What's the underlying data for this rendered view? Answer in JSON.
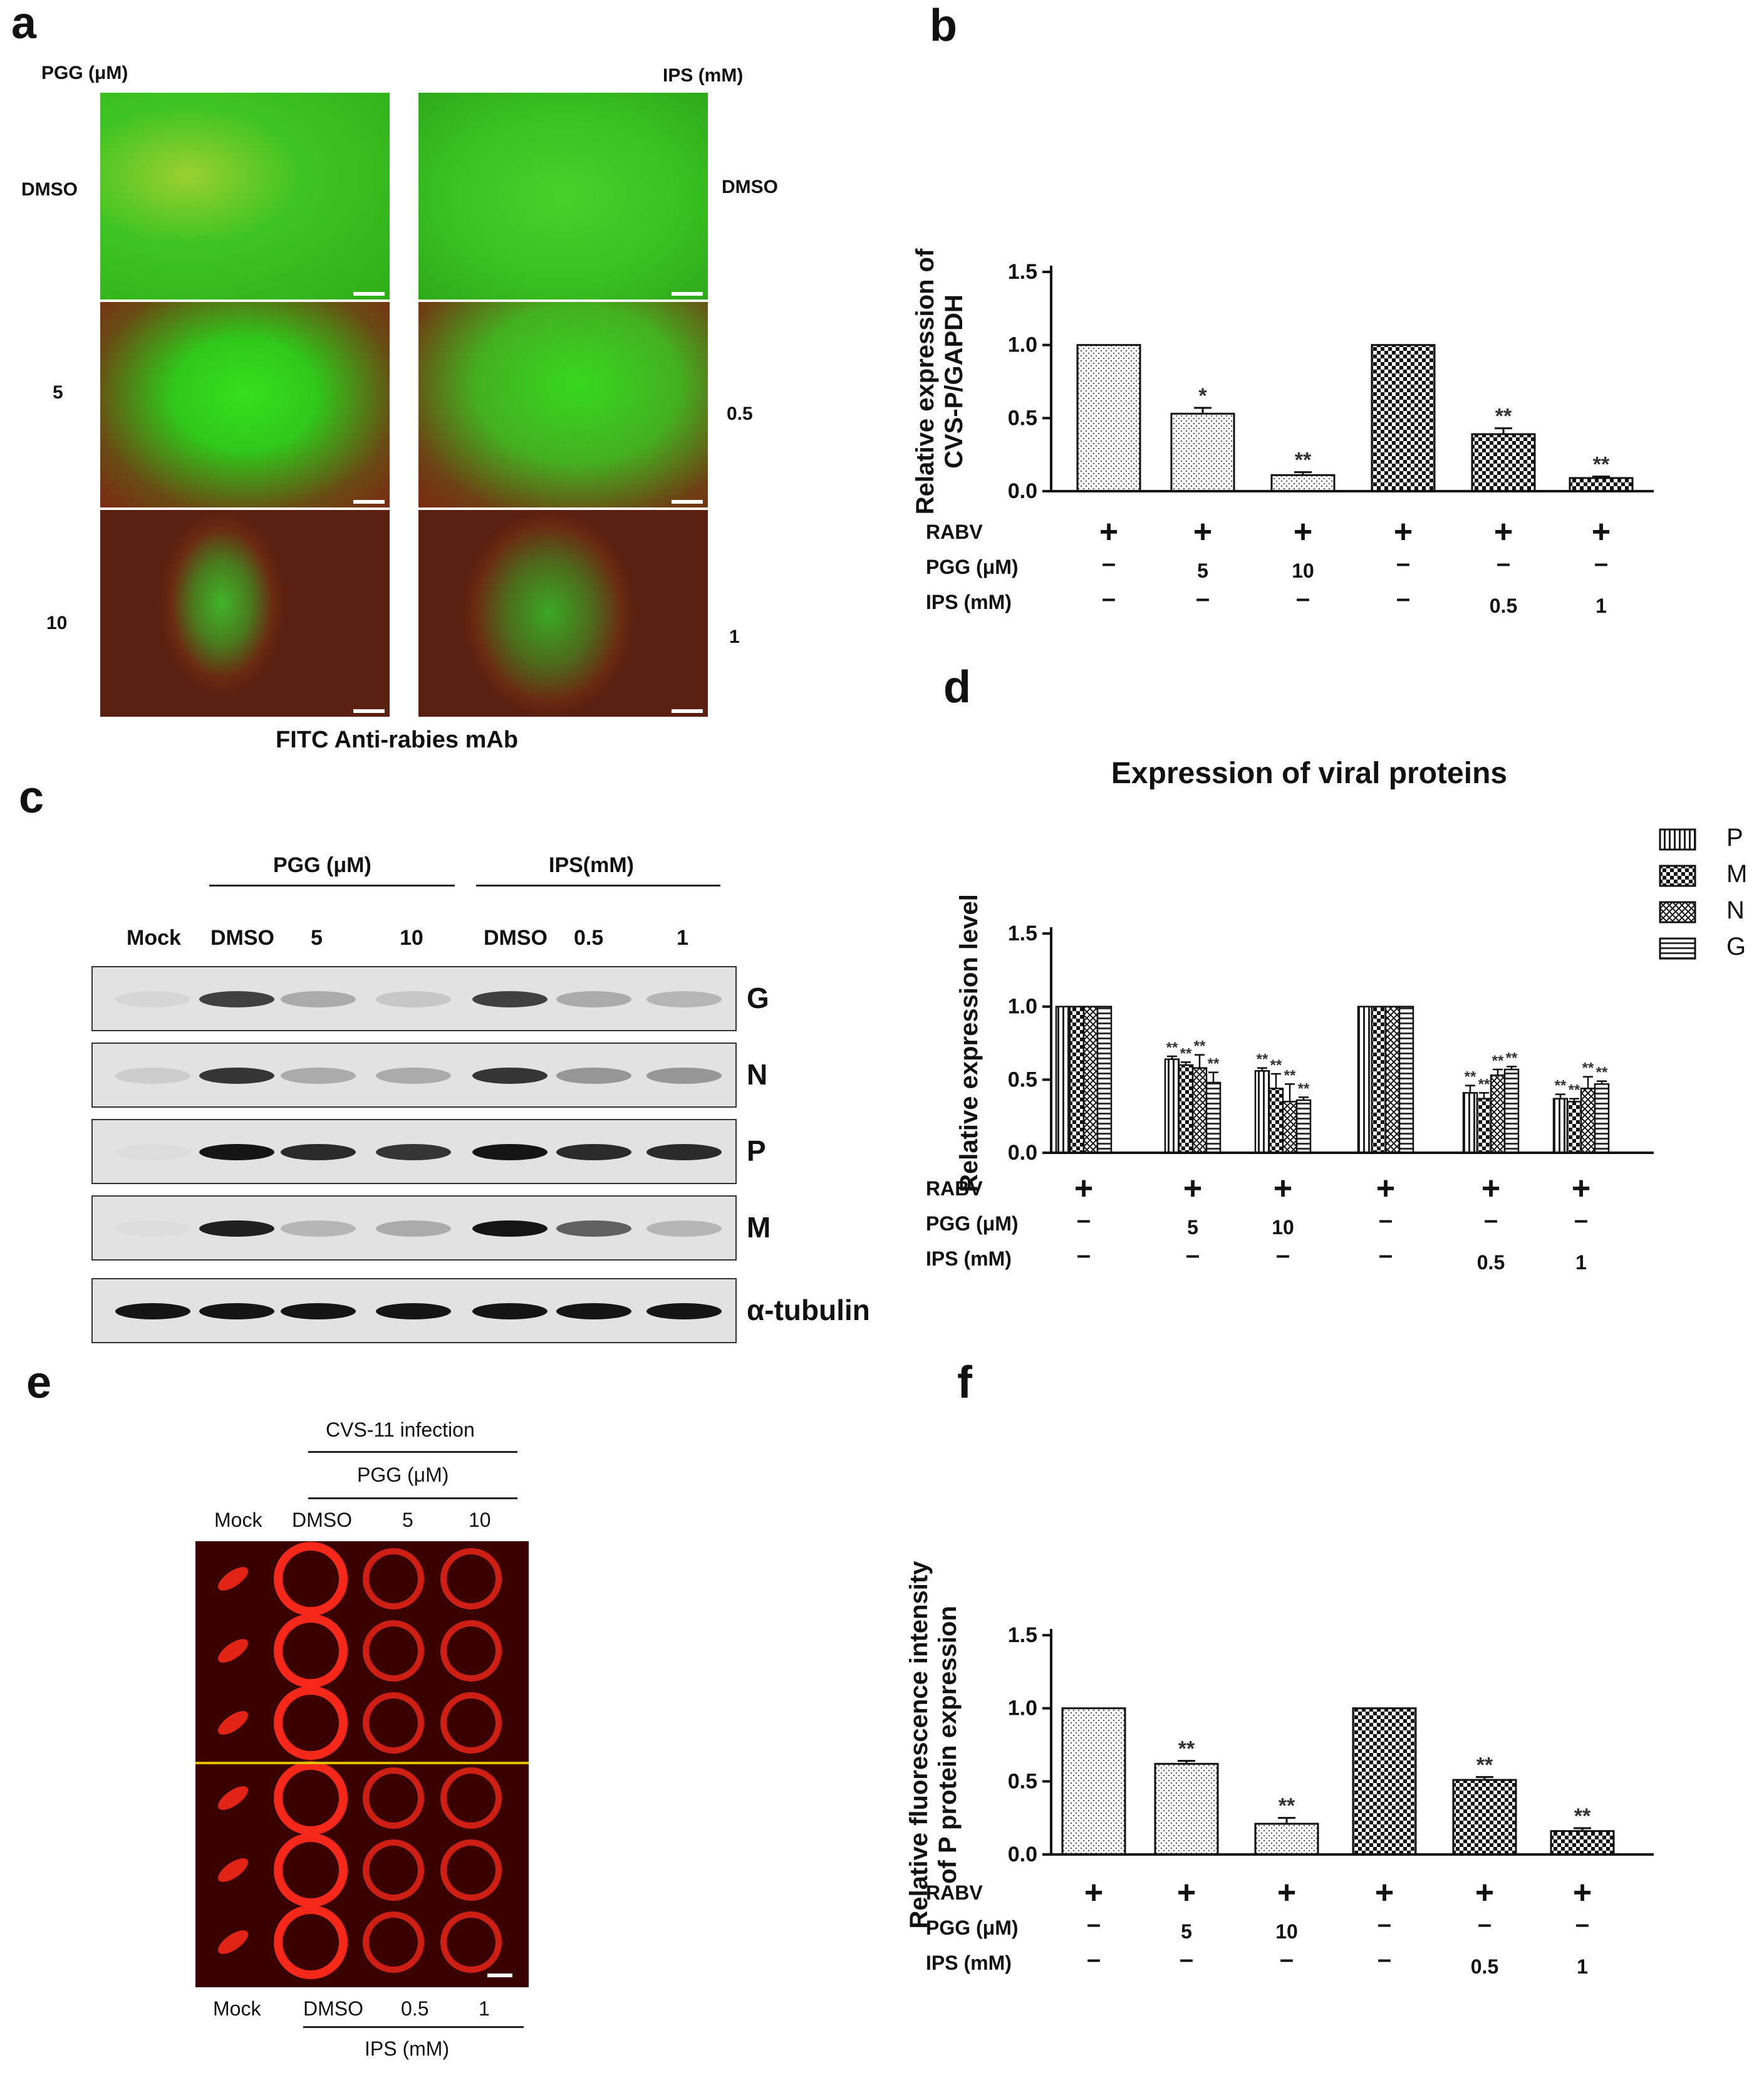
{
  "panels": {
    "a": "a",
    "b": "b",
    "c": "c",
    "d": "d",
    "e": "e",
    "f": "f"
  },
  "panel_a": {
    "left_header": "PGG (μM)",
    "right_header": "IPS (mM)",
    "left_rows": [
      "DMSO",
      "5",
      "10"
    ],
    "right_rows": [
      "DMSO",
      "0.5",
      "1"
    ],
    "caption": "FITC Anti-rabies mAb",
    "colors": {
      "green": "#2fd21a",
      "red": "#8a2a12"
    }
  },
  "panel_c": {
    "group1": "PGG (μM)",
    "group2": "IPS(mM)",
    "lanes": [
      "Mock",
      "DMSO",
      "5",
      "10",
      "DMSO",
      "0.5",
      "1"
    ],
    "rows": [
      "G",
      "N",
      "P",
      "M",
      "α-tubulin"
    ],
    "intensity": {
      "G": [
        0.05,
        0.75,
        0.25,
        0.12,
        0.75,
        0.25,
        0.2
      ],
      "N": [
        0.1,
        0.8,
        0.25,
        0.25,
        0.8,
        0.35,
        0.35
      ],
      "P": [
        0.02,
        0.95,
        0.85,
        0.8,
        0.95,
        0.85,
        0.85
      ],
      "M": [
        0.02,
        0.9,
        0.2,
        0.25,
        0.95,
        0.6,
        0.2
      ],
      "α-tubulin": [
        0.95,
        0.95,
        0.95,
        0.95,
        0.95,
        0.95,
        0.95
      ]
    }
  },
  "panel_e": {
    "top1": "CVS-11 infection",
    "top2": "PGG (μM)",
    "top_cols": [
      "Mock",
      "DMSO",
      "5",
      "10"
    ],
    "bottom_cols": [
      "Mock",
      "DMSO",
      "0.5",
      "1"
    ],
    "bottom_group": "IPS (mM)",
    "colors": {
      "bg": "#3a0000",
      "signal": "#ff2a1a",
      "divider": "#e0c000"
    }
  },
  "treatment_table": {
    "row_labels": [
      "RABV",
      "PGG (μM)",
      "IPS (mM)"
    ],
    "rabv": [
      "+",
      "+",
      "+",
      "+",
      "+",
      "+"
    ],
    "pgg": [
      "–",
      "5",
      "10",
      "–",
      "–",
      "–"
    ],
    "ips": [
      "–",
      "–",
      "–",
      "–",
      "0.5",
      "1"
    ]
  },
  "chart_data": [
    {
      "id": "b",
      "type": "bar",
      "ylabel": "Relative expression of CVS-P/GAPDH",
      "ylabel_lines": [
        "Relative expression of",
        "CVS-P/GAPDH"
      ],
      "ylim": [
        0,
        1.5
      ],
      "yticks": [
        "0.0",
        "0.5",
        "1.0",
        "1.5"
      ],
      "values": [
        1.0,
        0.53,
        0.11,
        1.0,
        0.39,
        0.09
      ],
      "errors": [
        0,
        0.04,
        0.02,
        0,
        0.04,
        0.01
      ],
      "significance": [
        "",
        "*",
        "**",
        "",
        "**",
        "**"
      ],
      "patterns": [
        "dots",
        "dots",
        "dots",
        "checker",
        "checker",
        "checker"
      ]
    },
    {
      "id": "d",
      "type": "bar",
      "title": "Expression of viral proteins",
      "ylabel": "Relative expression level",
      "ylim": [
        0,
        1.5
      ],
      "yticks": [
        "0.0",
        "0.5",
        "1.0",
        "1.5"
      ],
      "legend": [
        "P",
        "M",
        "N",
        "G"
      ],
      "legend_position": "right",
      "series": [
        {
          "name": "P",
          "values": [
            1.0,
            0.64,
            0.56,
            1.0,
            0.41,
            0.37
          ],
          "errors": [
            0,
            0.02,
            0.02,
            0,
            0.05,
            0.03
          ]
        },
        {
          "name": "M",
          "values": [
            1.0,
            0.6,
            0.44,
            1.0,
            0.37,
            0.35
          ],
          "errors": [
            0,
            0.02,
            0.1,
            0,
            0.04,
            0.02
          ]
        },
        {
          "name": "N",
          "values": [
            1.0,
            0.58,
            0.35,
            1.0,
            0.53,
            0.44
          ],
          "errors": [
            0,
            0.09,
            0.12,
            0,
            0.04,
            0.08
          ]
        },
        {
          "name": "G",
          "values": [
            1.0,
            0.48,
            0.36,
            1.0,
            0.57,
            0.47
          ],
          "errors": [
            0,
            0.07,
            0.02,
            0,
            0.02,
            0.02
          ]
        }
      ],
      "significance": [
        "",
        "**",
        "**",
        "",
        "**",
        "**"
      ]
    },
    {
      "id": "f",
      "type": "bar",
      "ylabel": "Relative fluorescence intensity of P protein expression",
      "ylabel_lines": [
        "Relative fluorescence intensity",
        "of P protein expression"
      ],
      "ylim": [
        0,
        1.5
      ],
      "yticks": [
        "0.0",
        "0.5",
        "1.0",
        "1.5"
      ],
      "values": [
        1.0,
        0.62,
        0.21,
        1.0,
        0.51,
        0.16
      ],
      "errors": [
        0,
        0.02,
        0.04,
        0,
        0.02,
        0.02
      ],
      "significance": [
        "",
        "**",
        "**",
        "",
        "**",
        "**"
      ],
      "patterns": [
        "dots",
        "dots",
        "dots",
        "checker",
        "checker",
        "checker"
      ]
    }
  ]
}
